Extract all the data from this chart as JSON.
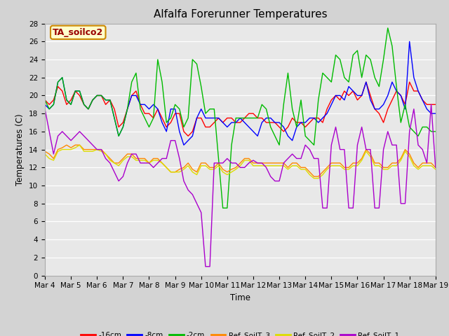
{
  "title": "Alfalfa Forerunner Temperatures",
  "xlabel": "Time",
  "ylabel": "Temperatures (C)",
  "annotation": "TA_soilco2",
  "ylim": [
    0,
    28
  ],
  "xlim": [
    0,
    15
  ],
  "series": {
    "-16cm": {
      "color": "#ff0000",
      "x": [
        0.0,
        0.167,
        0.333,
        0.5,
        0.667,
        0.833,
        1.0,
        1.167,
        1.333,
        1.5,
        1.667,
        1.833,
        2.0,
        2.167,
        2.333,
        2.5,
        2.667,
        2.833,
        3.0,
        3.167,
        3.333,
        3.5,
        3.667,
        3.833,
        4.0,
        4.167,
        4.333,
        4.5,
        4.667,
        4.833,
        5.0,
        5.167,
        5.333,
        5.5,
        5.667,
        5.833,
        6.0,
        6.167,
        6.333,
        6.5,
        6.667,
        6.833,
        7.0,
        7.167,
        7.333,
        7.5,
        7.667,
        7.833,
        8.0,
        8.167,
        8.333,
        8.5,
        8.667,
        8.833,
        9.0,
        9.167,
        9.333,
        9.5,
        9.667,
        9.833,
        10.0,
        10.167,
        10.333,
        10.5,
        10.667,
        10.833,
        11.0,
        11.167,
        11.333,
        11.5,
        11.667,
        11.833,
        12.0,
        12.167,
        12.333,
        12.5,
        12.667,
        12.833,
        13.0,
        13.167,
        13.333,
        13.5,
        13.667,
        13.833,
        14.0,
        14.167,
        14.333,
        14.5,
        14.667,
        14.833,
        15.0
      ],
      "y": [
        19.5,
        19.0,
        19.5,
        21.0,
        20.5,
        19.0,
        19.5,
        20.5,
        20.0,
        19.0,
        18.5,
        19.5,
        20.0,
        20.0,
        19.0,
        19.5,
        18.5,
        16.5,
        17.0,
        18.5,
        20.0,
        20.5,
        19.0,
        18.0,
        18.0,
        17.5,
        18.5,
        17.5,
        16.5,
        17.0,
        18.0,
        18.0,
        16.0,
        15.5,
        16.0,
        17.5,
        17.5,
        16.5,
        16.5,
        17.0,
        17.5,
        17.0,
        17.5,
        17.5,
        17.0,
        17.0,
        17.5,
        18.0,
        18.0,
        17.5,
        17.5,
        17.0,
        17.0,
        17.0,
        16.5,
        16.0,
        16.5,
        17.5,
        17.0,
        17.0,
        16.5,
        17.0,
        17.5,
        17.5,
        17.0,
        18.5,
        19.5,
        20.0,
        19.5,
        20.5,
        20.0,
        20.5,
        19.5,
        20.0,
        21.5,
        20.0,
        18.5,
        18.0,
        17.0,
        18.5,
        19.5,
        20.5,
        20.0,
        19.0,
        21.5,
        20.5,
        20.5,
        19.5,
        19.0,
        19.0,
        19.0
      ]
    },
    "-8cm": {
      "color": "#0000ff",
      "x": [
        0.0,
        0.167,
        0.333,
        0.5,
        0.667,
        0.833,
        1.0,
        1.167,
        1.333,
        1.5,
        1.667,
        1.833,
        2.0,
        2.167,
        2.333,
        2.5,
        2.667,
        2.833,
        3.0,
        3.167,
        3.333,
        3.5,
        3.667,
        3.833,
        4.0,
        4.167,
        4.333,
        4.5,
        4.667,
        4.833,
        5.0,
        5.167,
        5.333,
        5.5,
        5.667,
        5.833,
        6.0,
        6.167,
        6.333,
        6.5,
        6.667,
        6.833,
        7.0,
        7.167,
        7.333,
        7.5,
        7.667,
        7.833,
        8.0,
        8.167,
        8.333,
        8.5,
        8.667,
        8.833,
        9.0,
        9.167,
        9.333,
        9.5,
        9.667,
        9.833,
        10.0,
        10.167,
        10.333,
        10.5,
        10.667,
        10.833,
        11.0,
        11.167,
        11.333,
        11.5,
        11.667,
        11.833,
        12.0,
        12.167,
        12.333,
        12.5,
        12.667,
        12.833,
        13.0,
        13.167,
        13.333,
        13.5,
        13.667,
        13.833,
        14.0,
        14.167,
        14.333,
        14.5,
        14.667,
        14.833,
        15.0
      ],
      "y": [
        19.0,
        18.5,
        19.0,
        21.5,
        22.0,
        19.5,
        19.0,
        20.5,
        20.5,
        19.0,
        18.5,
        19.5,
        20.0,
        20.0,
        19.5,
        19.5,
        17.5,
        15.5,
        16.5,
        18.5,
        20.0,
        20.0,
        19.0,
        19.0,
        18.5,
        19.0,
        18.5,
        17.0,
        16.0,
        18.5,
        18.5,
        16.0,
        14.5,
        15.0,
        15.5,
        17.5,
        18.5,
        17.5,
        17.5,
        17.5,
        17.5,
        17.0,
        16.5,
        17.0,
        17.0,
        17.5,
        17.0,
        16.5,
        16.0,
        15.5,
        17.0,
        17.5,
        17.5,
        17.0,
        17.0,
        16.5,
        15.5,
        15.0,
        16.5,
        17.0,
        17.0,
        17.5,
        17.5,
        17.0,
        17.5,
        18.0,
        19.0,
        20.0,
        20.0,
        19.5,
        21.0,
        20.5,
        20.0,
        20.0,
        21.5,
        19.5,
        18.5,
        18.5,
        19.0,
        20.0,
        21.5,
        20.5,
        20.0,
        18.5,
        26.0,
        22.0,
        20.5,
        19.5,
        18.5,
        18.0,
        18.0
      ]
    },
    "-2cm": {
      "color": "#00bb00",
      "x": [
        0.0,
        0.167,
        0.333,
        0.5,
        0.667,
        0.833,
        1.0,
        1.167,
        1.333,
        1.5,
        1.667,
        1.833,
        2.0,
        2.167,
        2.333,
        2.5,
        2.667,
        2.833,
        3.0,
        3.167,
        3.333,
        3.5,
        3.667,
        3.833,
        4.0,
        4.167,
        4.333,
        4.5,
        4.667,
        4.833,
        5.0,
        5.167,
        5.333,
        5.5,
        5.667,
        5.833,
        6.0,
        6.167,
        6.333,
        6.5,
        6.667,
        6.833,
        7.0,
        7.167,
        7.333,
        7.5,
        7.667,
        7.833,
        8.0,
        8.167,
        8.333,
        8.5,
        8.667,
        8.833,
        9.0,
        9.167,
        9.333,
        9.5,
        9.667,
        9.833,
        10.0,
        10.167,
        10.333,
        10.5,
        10.667,
        10.833,
        11.0,
        11.167,
        11.333,
        11.5,
        11.667,
        11.833,
        12.0,
        12.167,
        12.333,
        12.5,
        12.667,
        12.833,
        13.0,
        13.167,
        13.333,
        13.5,
        13.667,
        13.833,
        14.0,
        14.167,
        14.333,
        14.5,
        14.667,
        14.833,
        15.0
      ],
      "y": [
        19.5,
        18.5,
        19.0,
        21.5,
        22.0,
        19.5,
        19.0,
        20.5,
        20.5,
        19.0,
        18.5,
        19.5,
        20.0,
        20.0,
        19.5,
        19.5,
        17.5,
        15.5,
        16.5,
        18.5,
        21.5,
        22.5,
        18.5,
        17.5,
        16.5,
        17.5,
        24.0,
        21.5,
        17.0,
        17.5,
        19.0,
        18.5,
        16.5,
        17.5,
        24.0,
        23.5,
        21.0,
        18.0,
        18.5,
        18.5,
        13.0,
        7.5,
        7.5,
        14.5,
        17.5,
        17.5,
        17.5,
        17.5,
        17.5,
        17.5,
        19.0,
        18.5,
        16.5,
        15.5,
        14.5,
        19.0,
        22.5,
        18.5,
        16.5,
        19.5,
        15.5,
        15.0,
        14.5,
        19.5,
        22.5,
        22.0,
        21.5,
        24.5,
        24.0,
        22.0,
        21.5,
        24.5,
        25.0,
        22.0,
        24.5,
        24.0,
        22.0,
        21.0,
        24.0,
        27.5,
        25.5,
        21.0,
        17.0,
        19.0,
        16.5,
        16.0,
        15.5,
        16.5,
        16.5,
        16.0,
        16.0
      ]
    },
    "Ref_SoilT_3": {
      "color": "#ff8800",
      "x": [
        0.0,
        0.167,
        0.333,
        0.5,
        0.667,
        0.833,
        1.0,
        1.167,
        1.333,
        1.5,
        1.667,
        1.833,
        2.0,
        2.167,
        2.333,
        2.5,
        2.667,
        2.833,
        3.0,
        3.167,
        3.333,
        3.5,
        3.667,
        3.833,
        4.0,
        4.167,
        4.333,
        4.5,
        4.667,
        4.833,
        5.0,
        5.167,
        5.333,
        5.5,
        5.667,
        5.833,
        6.0,
        6.167,
        6.333,
        6.5,
        6.667,
        6.833,
        7.0,
        7.167,
        7.333,
        7.5,
        7.667,
        7.833,
        8.0,
        8.167,
        8.333,
        8.5,
        8.667,
        8.833,
        9.0,
        9.167,
        9.333,
        9.5,
        9.667,
        9.833,
        10.0,
        10.167,
        10.333,
        10.5,
        10.667,
        10.833,
        11.0,
        11.167,
        11.333,
        11.5,
        11.667,
        11.833,
        12.0,
        12.167,
        12.333,
        12.5,
        12.667,
        12.833,
        13.0,
        13.167,
        13.333,
        13.5,
        13.667,
        13.833,
        14.0,
        14.167,
        14.333,
        14.5,
        14.667,
        14.833,
        15.0
      ],
      "y": [
        13.8,
        13.5,
        13.0,
        14.0,
        14.2,
        14.5,
        14.2,
        14.5,
        14.5,
        14.0,
        14.0,
        14.0,
        14.0,
        14.0,
        13.5,
        13.0,
        12.5,
        12.5,
        13.0,
        13.5,
        13.5,
        13.0,
        13.0,
        13.0,
        12.5,
        13.0,
        13.0,
        12.5,
        12.0,
        11.5,
        11.5,
        11.8,
        12.0,
        12.5,
        11.8,
        11.5,
        12.5,
        12.5,
        12.0,
        12.0,
        12.5,
        11.8,
        11.5,
        11.8,
        12.0,
        12.5,
        13.0,
        13.0,
        12.5,
        12.5,
        12.5,
        12.5,
        12.5,
        12.5,
        12.5,
        12.5,
        12.0,
        12.5,
        12.5,
        12.0,
        12.0,
        11.5,
        11.0,
        11.0,
        11.5,
        12.0,
        12.5,
        12.5,
        12.5,
        12.0,
        12.0,
        12.5,
        12.5,
        13.0,
        14.0,
        13.5,
        12.5,
        12.5,
        12.0,
        12.0,
        12.5,
        12.5,
        13.0,
        14.0,
        13.5,
        12.5,
        12.0,
        12.5,
        12.5,
        12.5,
        12.0
      ]
    },
    "Ref_SoilT_2": {
      "color": "#dddd00",
      "x": [
        0.0,
        0.167,
        0.333,
        0.5,
        0.667,
        0.833,
        1.0,
        1.167,
        1.333,
        1.5,
        1.667,
        1.833,
        2.0,
        2.167,
        2.333,
        2.5,
        2.667,
        2.833,
        3.0,
        3.167,
        3.333,
        3.5,
        3.667,
        3.833,
        4.0,
        4.167,
        4.333,
        4.5,
        4.667,
        4.833,
        5.0,
        5.167,
        5.333,
        5.5,
        5.667,
        5.833,
        6.0,
        6.167,
        6.333,
        6.5,
        6.667,
        6.833,
        7.0,
        7.167,
        7.333,
        7.5,
        7.667,
        7.833,
        8.0,
        8.167,
        8.333,
        8.5,
        8.667,
        8.833,
        9.0,
        9.167,
        9.333,
        9.5,
        9.667,
        9.833,
        10.0,
        10.167,
        10.333,
        10.5,
        10.667,
        10.833,
        11.0,
        11.167,
        11.333,
        11.5,
        11.667,
        11.833,
        12.0,
        12.167,
        12.333,
        12.5,
        12.667,
        12.833,
        13.0,
        13.167,
        13.333,
        13.5,
        13.667,
        13.833,
        14.0,
        14.167,
        14.333,
        14.5,
        14.667,
        14.833,
        15.0
      ],
      "y": [
        13.5,
        13.0,
        12.8,
        13.8,
        14.0,
        14.0,
        14.0,
        14.2,
        14.5,
        13.8,
        13.8,
        13.8,
        14.0,
        13.8,
        13.5,
        12.8,
        12.5,
        12.2,
        12.8,
        13.2,
        13.2,
        12.8,
        12.8,
        12.8,
        12.5,
        12.8,
        12.8,
        12.5,
        12.0,
        11.5,
        11.5,
        11.5,
        11.8,
        12.2,
        11.5,
        11.2,
        12.2,
        12.2,
        11.8,
        11.8,
        12.2,
        11.5,
        11.2,
        11.5,
        11.8,
        12.2,
        12.8,
        12.8,
        12.2,
        12.2,
        12.2,
        12.2,
        12.2,
        12.2,
        12.2,
        12.2,
        11.8,
        12.2,
        12.2,
        11.8,
        11.8,
        11.2,
        10.8,
        10.8,
        11.2,
        11.8,
        12.2,
        12.2,
        12.2,
        11.8,
        11.8,
        12.2,
        12.2,
        12.8,
        13.8,
        13.2,
        12.2,
        12.2,
        11.8,
        11.8,
        12.2,
        12.2,
        12.8,
        13.8,
        13.2,
        12.2,
        11.8,
        12.2,
        12.2,
        12.2,
        11.8
      ]
    },
    "Ref_SoilT_1": {
      "color": "#aa00cc",
      "x": [
        0.0,
        0.167,
        0.333,
        0.5,
        0.667,
        0.833,
        1.0,
        1.167,
        1.333,
        1.5,
        1.667,
        1.833,
        2.0,
        2.167,
        2.333,
        2.5,
        2.667,
        2.833,
        3.0,
        3.167,
        3.333,
        3.5,
        3.667,
        3.833,
        4.0,
        4.167,
        4.333,
        4.5,
        4.667,
        4.833,
        5.0,
        5.167,
        5.333,
        5.5,
        5.667,
        5.833,
        6.0,
        6.167,
        6.333,
        6.5,
        6.667,
        6.833,
        7.0,
        7.167,
        7.333,
        7.5,
        7.667,
        7.833,
        8.0,
        8.167,
        8.333,
        8.5,
        8.667,
        8.833,
        9.0,
        9.167,
        9.333,
        9.5,
        9.667,
        9.833,
        10.0,
        10.167,
        10.333,
        10.5,
        10.667,
        10.833,
        11.0,
        11.167,
        11.333,
        11.5,
        11.667,
        11.833,
        12.0,
        12.167,
        12.333,
        12.5,
        12.667,
        12.833,
        13.0,
        13.167,
        13.333,
        13.5,
        13.667,
        13.833,
        14.0,
        14.167,
        14.333,
        14.5,
        14.667,
        14.833,
        15.0
      ],
      "y": [
        18.5,
        16.0,
        13.5,
        15.5,
        16.0,
        15.5,
        15.0,
        15.5,
        16.0,
        15.5,
        15.0,
        14.5,
        14.0,
        14.0,
        13.0,
        12.5,
        11.5,
        10.5,
        11.0,
        12.5,
        13.5,
        13.5,
        12.5,
        12.5,
        12.5,
        12.0,
        12.5,
        13.0,
        13.0,
        15.0,
        15.0,
        13.0,
        10.5,
        9.5,
        9.0,
        8.0,
        7.0,
        1.0,
        1.0,
        12.5,
        12.5,
        12.5,
        13.0,
        12.5,
        12.5,
        12.0,
        12.0,
        12.5,
        12.8,
        12.5,
        12.5,
        12.0,
        11.0,
        10.5,
        10.5,
        12.5,
        13.0,
        13.5,
        13.0,
        13.0,
        14.5,
        14.0,
        13.0,
        13.0,
        7.5,
        7.5,
        14.5,
        16.5,
        14.0,
        14.0,
        7.5,
        7.5,
        14.5,
        16.5,
        14.0,
        14.0,
        7.5,
        7.5,
        14.0,
        16.0,
        14.5,
        14.5,
        8.0,
        8.0,
        16.0,
        18.5,
        14.5,
        14.0,
        12.5,
        19.0,
        12.0
      ]
    }
  },
  "xtick_labels": [
    "Mar 4",
    "Mar 5",
    "Mar 6",
    "Mar 7",
    "Mar 8",
    "Mar 9",
    "Mar 10",
    "Mar 11",
    "Mar 12",
    "Mar 13",
    "Mar 14",
    "Mar 15",
    "Mar 16",
    "Mar 17",
    "Mar 18",
    "Mar 19"
  ],
  "xtick_positions": [
    0,
    1,
    2,
    3,
    4,
    5,
    6,
    7,
    8,
    9,
    10,
    11,
    12,
    13,
    14,
    15
  ],
  "ytick_labels": [
    "0",
    "2",
    "4",
    "6",
    "8",
    "10",
    "12",
    "14",
    "16",
    "18",
    "20",
    "22",
    "24",
    "26",
    "28"
  ],
  "ytick_positions": [
    0,
    2,
    4,
    6,
    8,
    10,
    12,
    14,
    16,
    18,
    20,
    22,
    24,
    26,
    28
  ],
  "legend_labels": [
    "-16cm",
    "-8cm",
    "-2cm",
    "Ref_SoilT_3",
    "Ref_SoilT_2",
    "Ref_SoilT_1"
  ],
  "legend_colors": [
    "#ff0000",
    "#0000ff",
    "#00bb00",
    "#ff8800",
    "#dddd00",
    "#aa00cc"
  ],
  "fig_facecolor": "#d3d3d3",
  "ax_facecolor": "#e8e8e8",
  "title_fontsize": 11,
  "axis_fontsize": 8.5,
  "tick_fontsize": 7.5
}
